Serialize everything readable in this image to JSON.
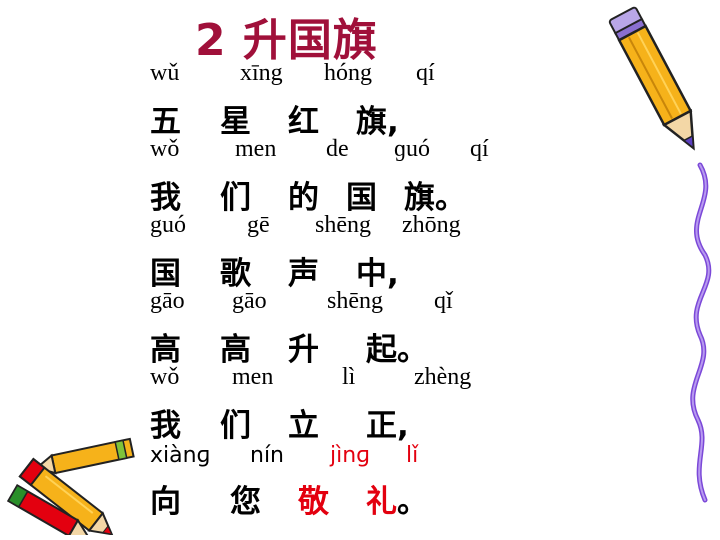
{
  "title": "2 升国旗",
  "lines": [
    {
      "pinyin": [
        "wǔ",
        "xīng",
        "hóng",
        "qí"
      ],
      "hanzi": [
        "五",
        "星",
        "红",
        "旗,"
      ]
    },
    {
      "pinyin": [
        "wǒ",
        "men",
        "de",
        "ɡuó",
        "qí"
      ],
      "hanzi": [
        "我",
        "们",
        "的",
        "国",
        "旗。"
      ]
    },
    {
      "pinyin": [
        "guó",
        "gē",
        "shēng",
        "zhōng"
      ],
      "hanzi": [
        "国",
        "歌",
        "声",
        "中,"
      ]
    },
    {
      "pinyin": [
        "gāo",
        "gāo",
        "shēng",
        "qǐ"
      ],
      "hanzi": [
        "高",
        "高",
        "升",
        "起。"
      ]
    },
    {
      "pinyin": [
        "wǒ",
        "men",
        "lì",
        "zhèng"
      ],
      "hanzi": [
        "我",
        "们",
        "立",
        "正,"
      ]
    },
    {
      "pinyin": [
        "xiànɡ",
        "nín",
        "jìnɡ",
        "lǐ"
      ],
      "hanzi": [
        "向",
        "您",
        "敬",
        "礼。"
      ]
    }
  ],
  "colors": {
    "title": "#a0103a",
    "highlight": "#e3000f"
  },
  "icons": [
    "pencil-icon",
    "crayons-icon",
    "purple-squiggle-icon"
  ]
}
